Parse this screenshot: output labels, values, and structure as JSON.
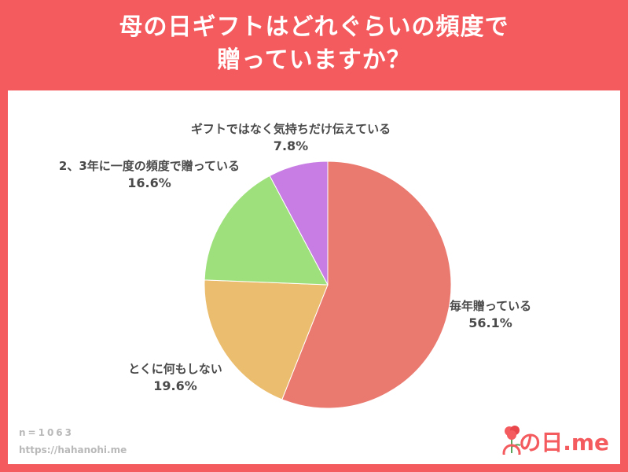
{
  "title": {
    "line1": "母の日ギフトはどれぐらいの頻度で",
    "line2": "贈っていますか？"
  },
  "colors": {
    "background": "#f45b5f",
    "panel": "#ffffff"
  },
  "chart_data": {
    "type": "pie",
    "slices": [
      {
        "label": "毎年贈っている",
        "value": 56.1,
        "value_label": "56.1%",
        "color": "#ea7a70"
      },
      {
        "label": "とくに何もしない",
        "value": 19.6,
        "value_label": "19.6%",
        "color": "#ebbd6e"
      },
      {
        "label": "2、3年に一度の頻度で贈っている",
        "value": 16.6,
        "value_label": "16.6%",
        "color": "#9ee07b"
      },
      {
        "label": "ギフトではなく気持ちだけ伝えている",
        "value": 7.8,
        "value_label": "7.8%",
        "color": "#c77de3"
      }
    ],
    "start": "12 o'clock",
    "direction": "clockwise"
  },
  "footer": {
    "sample": "n=1063",
    "url": "https://hahanohi.me",
    "logo_text": "の日.me",
    "logo_icon": "carnation-icon"
  }
}
